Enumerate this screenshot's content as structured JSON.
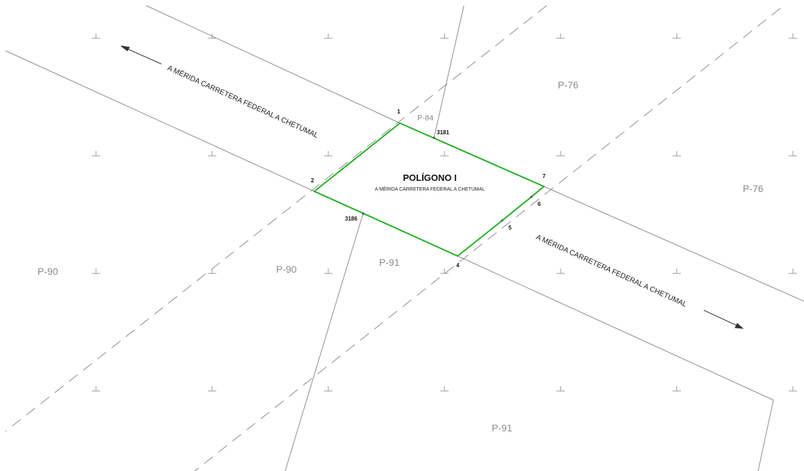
{
  "polygon": {
    "title": "POLÍGONO I",
    "subtitle": "A MÉRIDA CARRETERA FEDERAL A CHETUMAL",
    "vertices": [
      "1",
      "2",
      "4",
      "5",
      "6",
      "7"
    ]
  },
  "roads": {
    "label_upper": "A MÉRIDA CARRETERA FEDERAL A CHETUMAL",
    "label_lower": "A MÉRIDA CARRETERA FEDERAL A CHETUMAL"
  },
  "parcels": {
    "p76_top": "P-76",
    "p76_right": "P-76",
    "p84": "P-84",
    "p90_left": "P-90",
    "p90_mid": "P-90",
    "p91_mid": "P-91",
    "p91_bottom": "P-91"
  },
  "markers": {
    "m3181": "3181",
    "m3186": "3186"
  },
  "colors": {
    "polygon": "#22b022",
    "lines": "#8c8c8c",
    "grid_ticks": "#9a9a9a"
  }
}
